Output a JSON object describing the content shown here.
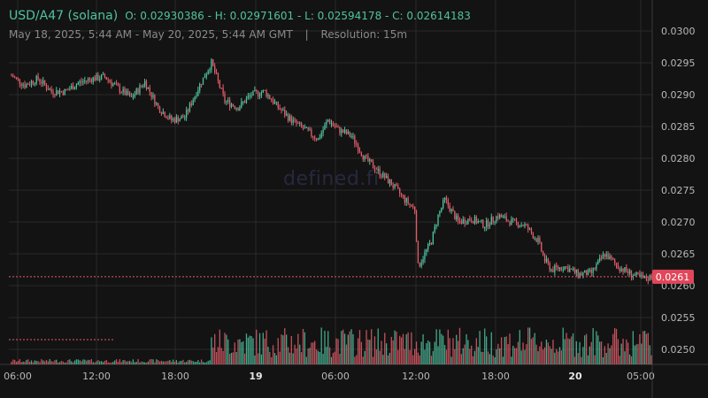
{
  "header": {
    "pair": "USD/A47 (solana)",
    "ohlc": "O: 0.02930386 - H: 0.02971601 - L: 0.02594178 - C: 0.02614183",
    "range": "May 18, 2025, 5:44 AM - May 20, 2025, 5:44 AM GMT",
    "separator": "|",
    "resolution": "Resolution: 15m"
  },
  "watermark": "defined.fi",
  "colors": {
    "up": "#4fc3a1",
    "down": "#e35d6a",
    "background": "#131313",
    "grid": "#2a2a2a"
  },
  "chart_data": {
    "type": "candlestick",
    "y_ticks": [
      "0.0300",
      "0.0295",
      "0.0290",
      "0.0285",
      "0.0280",
      "0.0275",
      "0.0270",
      "0.0265",
      "0.0260",
      "0.0255",
      "0.0250"
    ],
    "ylim": [
      0.02477,
      0.03012
    ],
    "x_ticks": [
      {
        "label": "06:00",
        "bold": false
      },
      {
        "label": "12:00",
        "bold": false
      },
      {
        "label": "18:00",
        "bold": false
      },
      {
        "label": "19",
        "bold": true
      },
      {
        "label": "06:00",
        "bold": false
      },
      {
        "label": "12:00",
        "bold": false
      },
      {
        "label": "18:00",
        "bold": false
      },
      {
        "label": "20",
        "bold": true
      },
      {
        "label": "05:00",
        "bold": false
      }
    ],
    "last_price": "0.0261",
    "last_price_value": 0.02614,
    "close_keypoints": [
      [
        0,
        0.0293
      ],
      [
        8,
        0.02915
      ],
      [
        16,
        0.02925
      ],
      [
        24,
        0.02905
      ],
      [
        32,
        0.02905
      ],
      [
        40,
        0.02918
      ],
      [
        48,
        0.02925
      ],
      [
        56,
        0.02928
      ],
      [
        64,
        0.0291
      ],
      [
        72,
        0.02895
      ],
      [
        80,
        0.0292
      ],
      [
        88,
        0.0288
      ],
      [
        96,
        0.0286
      ],
      [
        104,
        0.02865
      ],
      [
        112,
        0.0291
      ],
      [
        120,
        0.0295
      ],
      [
        128,
        0.0289
      ],
      [
        136,
        0.0288
      ],
      [
        144,
        0.029
      ],
      [
        152,
        0.02905
      ],
      [
        160,
        0.0288
      ],
      [
        168,
        0.0286
      ],
      [
        176,
        0.02845
      ],
      [
        184,
        0.0283
      ],
      [
        190,
        0.0286
      ],
      [
        196,
        0.02845
      ],
      [
        204,
        0.02835
      ],
      [
        212,
        0.028
      ],
      [
        220,
        0.0278
      ],
      [
        228,
        0.0276
      ],
      [
        236,
        0.02735
      ],
      [
        242,
        0.0272
      ],
      [
        244,
        0.0263
      ],
      [
        252,
        0.0267
      ],
      [
        256,
        0.0271
      ],
      [
        260,
        0.02735
      ],
      [
        268,
        0.027
      ],
      [
        276,
        0.02705
      ],
      [
        284,
        0.02695
      ],
      [
        292,
        0.0271
      ],
      [
        300,
        0.027
      ],
      [
        308,
        0.02695
      ],
      [
        316,
        0.0267
      ],
      [
        320,
        0.0264
      ],
      [
        324,
        0.02625
      ],
      [
        332,
        0.0263
      ],
      [
        340,
        0.02618
      ],
      [
        348,
        0.0262
      ],
      [
        356,
        0.0265
      ],
      [
        364,
        0.0263
      ],
      [
        372,
        0.02618
      ],
      [
        380,
        0.0261
      ],
      [
        384,
        0.02614
      ]
    ],
    "candle_count": 385,
    "volume_axis_tick": "0.0250"
  }
}
